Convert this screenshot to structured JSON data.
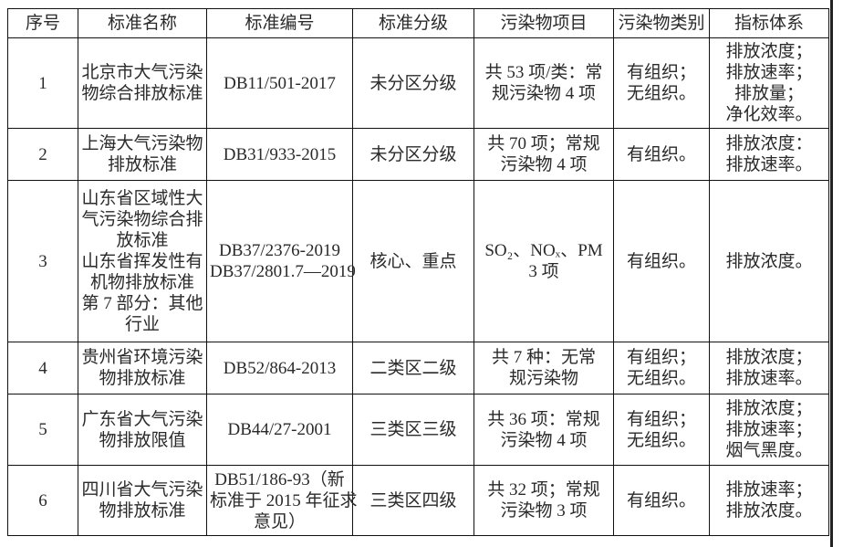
{
  "table": {
    "headers": [
      "序号",
      "标准名称",
      "标准编号",
      "标准分级",
      "污染物项目",
      "污染物类别",
      "指标体系"
    ],
    "rows": [
      [
        [
          "1"
        ],
        [
          "北京市大气污染",
          "物综合排放标准"
        ],
        [
          "DB11/501-2017"
        ],
        [
          "未分区分级"
        ],
        [
          "共 53 项/类：常",
          "规污染物 4 项"
        ],
        [
          "有组织；",
          "无组织。"
        ],
        [
          "排放浓度；",
          "排放速率；",
          "排放量；",
          "净化效率。"
        ]
      ],
      [
        [
          "2"
        ],
        [
          "上海大气污染物",
          "排放标准"
        ],
        [
          "DB31/933-2015"
        ],
        [
          "未分区分级"
        ],
        [
          "共 70 项；常规",
          "污染物 4 项"
        ],
        [
          "有组织。"
        ],
        [
          "排放浓度：",
          "排放速率。"
        ]
      ],
      [
        [
          "3"
        ],
        [
          "山东省区域性大",
          "气污染物综合排",
          "放标准",
          "山东省挥发性有",
          "机物排放标准",
          "第 7 部分：其他",
          "行业"
        ],
        [
          "DB37/2376-2019",
          "DB37/2801.7—2019"
        ],
        [
          "核心、重点"
        ],
        [
          "SO₂、NOₓ、PM",
          "3 项"
        ],
        [
          "有组织。"
        ],
        [
          "排放浓度。"
        ]
      ],
      [
        [
          "4"
        ],
        [
          "贵州省环境污染",
          "物排放标准"
        ],
        [
          "DB52/864-2013"
        ],
        [
          "二类区二级"
        ],
        [
          "共 7 种：无常",
          "规污染物"
        ],
        [
          "有组织；",
          "无组织。"
        ],
        [
          "排放浓度；",
          "排放速率。"
        ]
      ],
      [
        [
          "5"
        ],
        [
          "广东省大气污染",
          "物排放限值"
        ],
        [
          "DB44/27-2001"
        ],
        [
          "三类区三级"
        ],
        [
          "共 36 项：常规",
          "污染物 4 项"
        ],
        [
          "有组织；",
          "无组织。"
        ],
        [
          "排放浓度；",
          "排放速率；",
          "烟气黑度。"
        ]
      ],
      [
        [
          "6"
        ],
        [
          "四川省大气污染",
          "物排放标准"
        ],
        [
          "DB51/186-93（新",
          "标准于 2015 年征求",
          "意见）"
        ],
        [
          "三类区四级"
        ],
        [
          "共 32 项；常规",
          "污染物 3 项"
        ],
        [
          "有组织。"
        ],
        [
          "排放速率；",
          "排放浓度。"
        ]
      ]
    ]
  }
}
